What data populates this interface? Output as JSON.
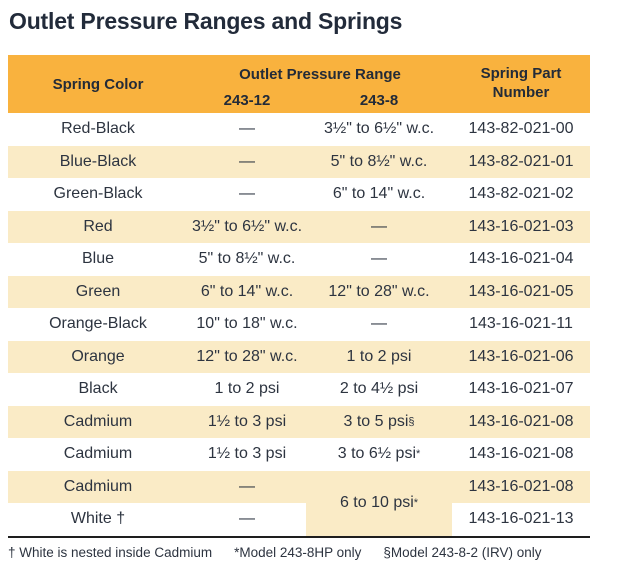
{
  "title": "Outlet Pressure Ranges and Springs",
  "colors": {
    "header_bg": "#F9B23E",
    "row_alt_bg": "#FAEBC6",
    "title_text": "#222B3A",
    "body_text": "#2D3440"
  },
  "table": {
    "header": {
      "col_spring_color": "Spring Color",
      "col_pressure_group": "Outlet Pressure Range",
      "col_243_12": "243-12",
      "col_243_8": "243-8",
      "col_part_number": "Spring Part Number"
    },
    "rows": [
      {
        "color": "Red-Black",
        "r12": "—",
        "r8": "3½\" to 6½\" w.c.",
        "part": "143-82-021-00"
      },
      {
        "color": "Blue-Black",
        "r12": "—",
        "r8": "5\" to 8½\" w.c.",
        "part": "143-82-021-01"
      },
      {
        "color": "Green-Black",
        "r12": "—",
        "r8": "6\" to 14\" w.c.",
        "part": "143-82-021-02"
      },
      {
        "color": "Red",
        "r12": "3½\" to 6½\" w.c.",
        "r8": "—",
        "part": "143-16-021-03"
      },
      {
        "color": "Blue",
        "r12": "5\" to 8½\" w.c.",
        "r8": "—",
        "part": "143-16-021-04"
      },
      {
        "color": "Green",
        "r12": "6\" to 14\" w.c.",
        "r8": "12\" to 28\" w.c.",
        "part": "143-16-021-05"
      },
      {
        "color": "Orange-Black",
        "r12": "10\" to 18\" w.c.",
        "r8": "—",
        "part": "143-16-021-11"
      },
      {
        "color": "Orange",
        "r12": "12\" to 28\" w.c.",
        "r8": "1 to 2 psi",
        "part": "143-16-021-06"
      },
      {
        "color": "Black",
        "r12": "1 to 2 psi",
        "r8": "2 to 4½ psi",
        "part": "143-16-021-07"
      },
      {
        "color": "Cadmium",
        "r12": "1½ to 3 psi",
        "r8": "3 to 5 psi",
        "r8_sup": "§",
        "part": "143-16-021-08"
      },
      {
        "color": "Cadmium",
        "r12": "1½ to 3 psi",
        "r8": "3 to 6½ psi",
        "r8_sup": "*",
        "part": "143-16-021-08"
      },
      {
        "color": "Cadmium",
        "r12": "—",
        "r8": "",
        "part": "143-16-021-08"
      },
      {
        "color": "White †",
        "r12": "—",
        "r8": "",
        "part": "143-16-021-13"
      }
    ],
    "merged_cell": {
      "text": "6 to 10 psi",
      "sup": "*"
    }
  },
  "footnotes": [
    "† White is nested inside Cadmium",
    "*Model 243-8HP only",
    "§Model 243-8-2 (IRV) only"
  ]
}
